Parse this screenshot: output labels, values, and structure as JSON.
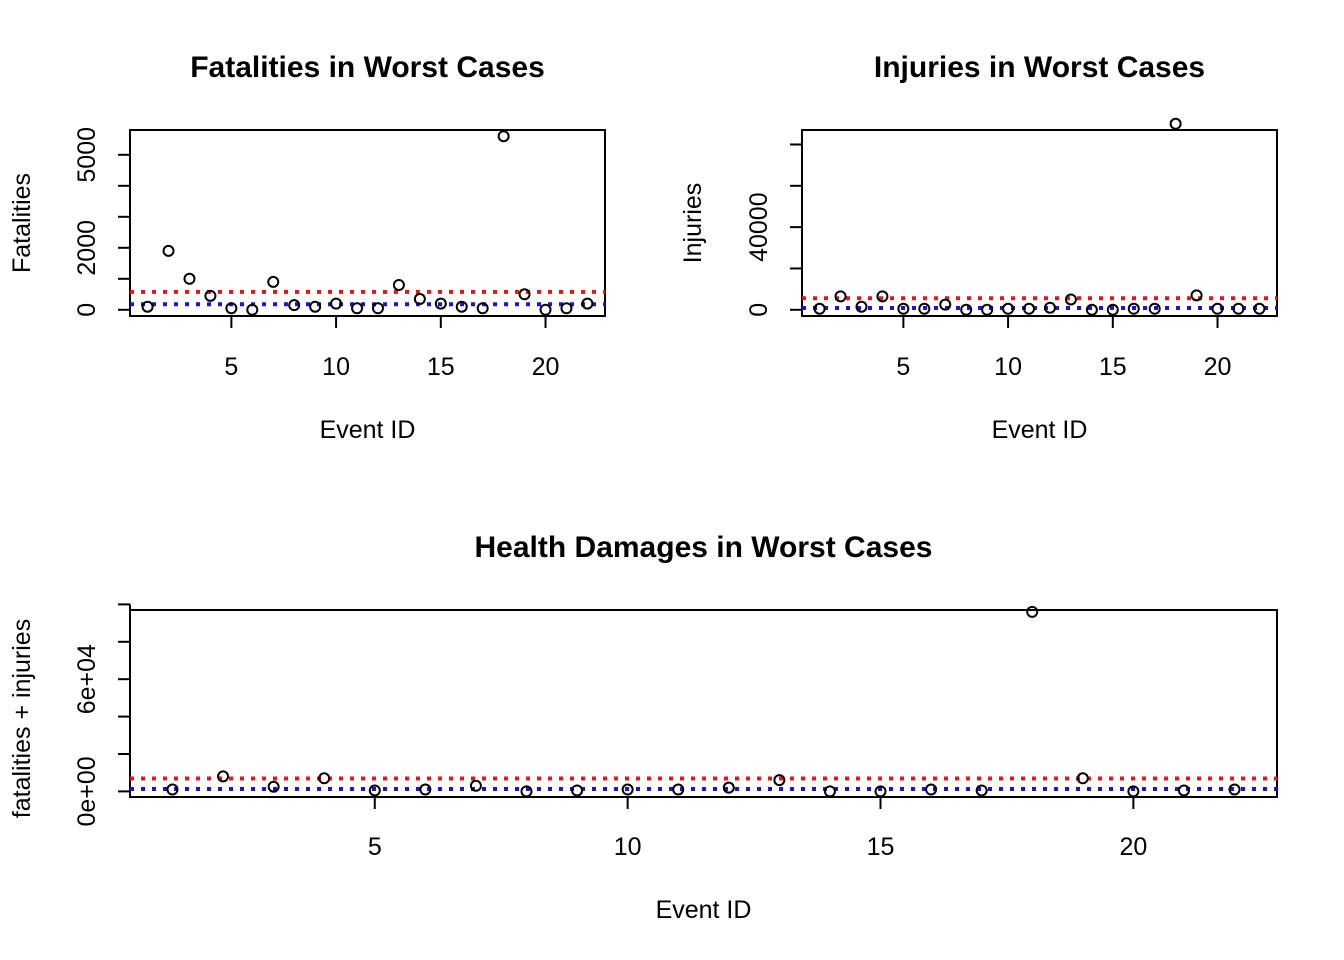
{
  "chart_data": [
    {
      "type": "scatter",
      "title": "Fatalities in Worst Cases",
      "xlabel": "Event ID",
      "ylabel": "Fatalities",
      "xlim": [
        0.16,
        22.84
      ],
      "ylim": [
        -200,
        5800
      ],
      "xticks": [
        5,
        10,
        15,
        20
      ],
      "yticks": [
        0,
        1000,
        2000,
        3000,
        4000,
        5000
      ],
      "ytick_labels": [
        "0",
        "",
        "2000",
        "",
        "",
        "5000"
      ],
      "x": [
        1,
        2,
        3,
        4,
        5,
        6,
        7,
        8,
        9,
        10,
        11,
        12,
        13,
        14,
        15,
        16,
        17,
        18,
        19,
        20,
        21,
        22
      ],
      "y": [
        100,
        1900,
        1000,
        450,
        50,
        0,
        900,
        150,
        100,
        200,
        50,
        50,
        800,
        350,
        200,
        100,
        50,
        5600,
        500,
        0,
        50,
        200
      ],
      "hlines": [
        {
          "y": 580,
          "color": "#e8141a",
          "style": "dotted"
        },
        {
          "y": 180,
          "color": "#1a14d8",
          "style": "dotted"
        }
      ]
    },
    {
      "type": "scatter",
      "title": "Injuries in Worst Cases",
      "xlabel": "Event ID",
      "ylabel": "Injuries",
      "xlim": [
        0.16,
        22.84
      ],
      "ylim": [
        -3000,
        87000
      ],
      "xticks": [
        5,
        10,
        15,
        20
      ],
      "yticks": [
        0,
        20000,
        40000,
        60000,
        80000
      ],
      "ytick_labels": [
        "0",
        "",
        "40000",
        "",
        ""
      ],
      "x": [
        1,
        2,
        3,
        4,
        5,
        6,
        7,
        8,
        9,
        10,
        11,
        12,
        13,
        14,
        15,
        16,
        17,
        18,
        19,
        20,
        21,
        22
      ],
      "y": [
        500,
        6500,
        1500,
        6500,
        500,
        500,
        2500,
        0,
        0,
        500,
        500,
        1000,
        5000,
        0,
        0,
        500,
        500,
        90000,
        7000,
        500,
        500,
        500
      ],
      "hlines": [
        {
          "y": 5600,
          "color": "#e8141a",
          "style": "dotted"
        },
        {
          "y": 900,
          "color": "#1a14d8",
          "style": "dotted"
        }
      ]
    },
    {
      "type": "scatter",
      "title": "Health Damages in Worst Cases",
      "xlabel": "Event ID",
      "ylabel": "fatalities + injuries",
      "xlim": [
        0.16,
        22.84
      ],
      "ylim": [
        -3000,
        97000
      ],
      "xticks": [
        5,
        10,
        15,
        20
      ],
      "yticks": [
        0,
        20000,
        40000,
        60000,
        80000,
        100000
      ],
      "ytick_labels": [
        "0e+00",
        "",
        "",
        "6e+04",
        "",
        ""
      ],
      "x": [
        1,
        2,
        3,
        4,
        5,
        6,
        7,
        8,
        9,
        10,
        11,
        12,
        13,
        14,
        15,
        16,
        17,
        18,
        19,
        20,
        21,
        22
      ],
      "y": [
        1000,
        8000,
        2500,
        7000,
        500,
        1000,
        3000,
        0,
        500,
        1000,
        1000,
        2000,
        6000,
        0,
        0,
        1000,
        500,
        96000,
        7000,
        0,
        500,
        1000
      ],
      "hlines": [
        {
          "y": 6900,
          "color": "#e8141a",
          "style": "dotted"
        },
        {
          "y": 1300,
          "color": "#1a14d8",
          "style": "dotted"
        }
      ]
    }
  ]
}
